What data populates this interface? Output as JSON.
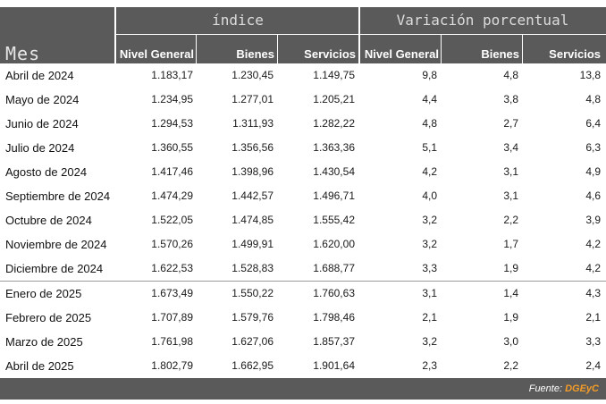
{
  "header": {
    "mes_label": "Mes",
    "group_indice": "índice",
    "group_variacion": "Variación porcentual",
    "columns": [
      "Nivel General",
      "Bienes",
      "Servicios",
      "Nivel General",
      "Bienes",
      "Servicios"
    ]
  },
  "rows": [
    {
      "mes": "Abril de 2024",
      "ig": "1.183,17",
      "ib": "1.230,45",
      "is": "1.149,75",
      "vg": "9,8",
      "vb": "4,8",
      "vs": "13,8"
    },
    {
      "mes": "Mayo de 2024",
      "ig": "1.234,95",
      "ib": "1.277,01",
      "is": "1.205,21",
      "vg": "4,4",
      "vb": "3,8",
      "vs": "4,8"
    },
    {
      "mes": "Junio de 2024",
      "ig": "1.294,53",
      "ib": "1.311,93",
      "is": "1.282,22",
      "vg": "4,8",
      "vb": "2,7",
      "vs": "6,4"
    },
    {
      "mes": "Julio de 2024",
      "ig": "1.360,55",
      "ib": "1.356,56",
      "is": "1.363,36",
      "vg": "5,1",
      "vb": "3,4",
      "vs": "6,3"
    },
    {
      "mes": "Agosto de 2024",
      "ig": "1.417,46",
      "ib": "1.398,96",
      "is": "1.430,54",
      "vg": "4,2",
      "vb": "3,1",
      "vs": "4,9"
    },
    {
      "mes": "Septiembre de 2024",
      "ig": "1.474,29",
      "ib": "1.442,57",
      "is": "1.496,71",
      "vg": "4,0",
      "vb": "3,1",
      "vs": "4,6"
    },
    {
      "mes": "Octubre de 2024",
      "ig": "1.522,05",
      "ib": "1.474,85",
      "is": "1.555,42",
      "vg": "3,2",
      "vb": "2,2",
      "vs": "3,9"
    },
    {
      "mes": "Noviembre de 2024",
      "ig": "1.570,26",
      "ib": "1.499,91",
      "is": "1.620,00",
      "vg": "3,2",
      "vb": "1,7",
      "vs": "4,2"
    },
    {
      "mes": "Diciembre de 2024",
      "ig": "1.622,53",
      "ib": "1.528,83",
      "is": "1.688,77",
      "vg": "3,3",
      "vb": "1,9",
      "vs": "4,2"
    },
    {
      "mes": "Enero  de 2025",
      "ig": "1.673,49",
      "ib": "1.550,22",
      "is": "1.760,63",
      "vg": "3,1",
      "vb": "1,4",
      "vs": "4,3"
    },
    {
      "mes": "Febrero de 2025",
      "ig": "1.707,89",
      "ib": "1.579,76",
      "is": "1.798,46",
      "vg": "2,1",
      "vb": "1,9",
      "vs": "2,1"
    },
    {
      "mes": "Marzo de 2025",
      "ig": "1.761,98",
      "ib": "1.627,06",
      "is": "1.857,37",
      "vg": "3,2",
      "vb": "3,0",
      "vs": "3,3"
    },
    {
      "mes": "Abril de 2025",
      "ig": "1.802,79",
      "ib": "1.662,95",
      "is": "1.901,64",
      "vg": "2,3",
      "vb": "2,2",
      "vs": "2,4"
    }
  ],
  "footer": {
    "source_label": "Fuente:",
    "source_name": "DGEyC"
  },
  "colors": {
    "header_bg": "#5a5a5a",
    "source_accent": "#f39c28"
  }
}
